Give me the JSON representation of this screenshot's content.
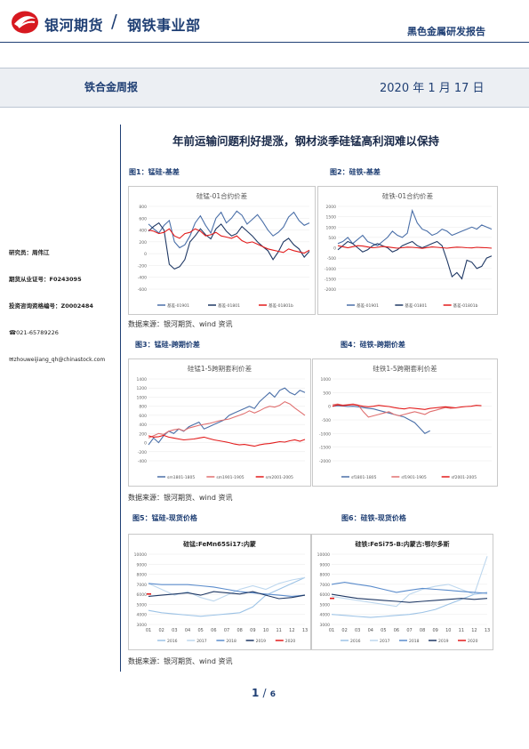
{
  "header": {
    "company": "银河期货",
    "slash": "/",
    "department": "钢铁事业部",
    "report_type": "黑色金属研发报告"
  },
  "band": {
    "report_name": "铁合金周报",
    "date": "2020 年 1 月 17 日"
  },
  "headline": "年前运输问题利好提涨，钢材淡季硅锰高利润难以保持",
  "sidebar": {
    "researcher_label": "研究员：",
    "researcher_name": "周伟江",
    "license_label": "期货从业证号：",
    "license_no": "F0243095",
    "consult_label": "投资咨询资格编号：",
    "consult_no": "Z0002484",
    "phone": "021-65789226",
    "email": "zhouweijiang_qh@chinastock.com"
  },
  "figures": [
    {
      "label": "图1：锰硅-基差"
    },
    {
      "label": "图2：硅铁-基差"
    },
    {
      "label": "图3：锰硅-跨期价差"
    },
    {
      "label": "图4：硅铁-跨期价差"
    },
    {
      "label": "图5：锰硅-现货价格"
    },
    {
      "label": "图6：硅铁-现货价格"
    }
  ],
  "source_notes": [
    "数据来源：银河期货、wind 资讯",
    "数据来源：银河期货、wind 资讯",
    "数据来源：银河期货、wind 资讯"
  ],
  "footer": {
    "page": "1",
    "total": "6",
    "slash": "/"
  },
  "colors": {
    "brand_red": "#d71920",
    "brand_blue": "#1f3f74",
    "s_blue": "#4a6fa8",
    "s_navy": "#1f3864",
    "s_red": "#e21b1b",
    "s_light": "#9dc3e6"
  },
  "chart_data": [
    {
      "type": "line",
      "title": "硅锰-01合约价差",
      "ylim": [
        -600,
        800
      ],
      "yticks": [
        "800",
        "600",
        "400",
        "200",
        "0",
        "-200",
        "-400",
        "-600"
      ],
      "series": [
        {
          "name": "基差-01901",
          "values": [
            500,
            420,
            350,
            480,
            560,
            200,
            100,
            150,
            300,
            520,
            640,
            480,
            350,
            600,
            700,
            520,
            600,
            720,
            650,
            500,
            580,
            660,
            540,
            400,
            300,
            360,
            450,
            620,
            700,
            560,
            480,
            520
          ]
        },
        {
          "name": "基差-01801",
          "values": [
            380,
            460,
            520,
            400,
            -180,
            -260,
            -220,
            -100,
            200,
            300,
            420,
            320,
            250,
            420,
            500,
            380,
            300,
            340,
            460,
            380,
            300,
            200,
            120,
            50,
            -100,
            30,
            200,
            260,
            150,
            80,
            -60,
            40
          ]
        },
        {
          "name": "基差-01801b",
          "values": [
            400,
            380,
            340,
            360,
            420,
            300,
            260,
            340,
            360,
            420,
            380,
            300,
            320,
            360,
            300,
            280,
            260,
            300,
            220,
            180,
            200,
            160,
            120,
            80,
            60,
            40,
            20,
            80,
            50,
            30,
            10,
            60
          ]
        }
      ]
    },
    {
      "type": "line",
      "title": "硅铁-01合约价差",
      "ylim": [
        -2000,
        2000
      ],
      "yticks": [
        "2000",
        "1500",
        "1000",
        "500",
        "0",
        "-500",
        "-1000",
        "-1500",
        "-2000"
      ],
      "series": [
        {
          "name": "基差-01901",
          "values": [
            200,
            300,
            500,
            200,
            400,
            600,
            300,
            200,
            100,
            300,
            500,
            800,
            600,
            500,
            700,
            1800,
            1200,
            900,
            800,
            600,
            700,
            900,
            800,
            600,
            700,
            800,
            900,
            1000,
            900,
            1100,
            1000,
            900
          ]
        },
        {
          "name": "基差-01801",
          "values": [
            -100,
            100,
            300,
            200,
            0,
            -200,
            -100,
            100,
            200,
            100,
            0,
            -200,
            -100,
            100,
            200,
            300,
            100,
            0,
            100,
            200,
            300,
            100,
            -600,
            -1400,
            -1200,
            -1500,
            -600,
            -700,
            -1000,
            -900,
            -500,
            -400
          ]
        },
        {
          "name": "基差-01801b",
          "values": [
            100,
            50,
            0,
            50,
            100,
            80,
            40,
            0,
            20,
            60,
            40,
            10,
            -20,
            0,
            30,
            20,
            0,
            -30,
            10,
            40,
            20,
            0,
            -20,
            10,
            30,
            20,
            0,
            -10,
            20,
            10,
            0,
            -20
          ]
        }
      ]
    },
    {
      "type": "line",
      "title": "硅锰1-5跨期套利价差",
      "ylim": [
        -400,
        1400
      ],
      "yticks": [
        "1400",
        "1200",
        "1000",
        "800",
        "600",
        "400",
        "200",
        "0",
        "-200",
        "-400"
      ],
      "series": [
        {
          "name": "sm1801-1805",
          "values": [
            -50,
            100,
            0,
            150,
            250,
            200,
            300,
            250,
            350,
            400,
            450,
            300,
            350,
            400,
            450,
            500,
            600,
            650,
            700,
            750,
            800,
            750,
            900,
            1000,
            1100,
            1000,
            1150,
            1200,
            1100,
            1050,
            1150,
            1100
          ]
        },
        {
          "name": "sm1901-1905",
          "values": [
            100,
            150,
            200,
            180,
            250,
            280,
            300,
            260,
            320,
            350,
            380,
            400,
            420,
            450,
            480,
            500,
            520,
            560,
            600,
            640,
            700,
            650,
            700,
            760,
            800,
            780,
            820,
            900,
            850,
            760,
            680,
            600
          ]
        },
        {
          "name": "sm2001-2005",
          "values": [
            150,
            120,
            130,
            160,
            120,
            100,
            80,
            60,
            70,
            80,
            100,
            120,
            90,
            60,
            40,
            20,
            0,
            -30,
            -50,
            -40,
            -60,
            -80,
            -50,
            -30,
            -20,
            0,
            20,
            10,
            40,
            60,
            30,
            70
          ]
        }
      ]
    },
    {
      "type": "line",
      "title": "硅铁1-5跨期套利价差",
      "ylim": [
        -2000,
        1000
      ],
      "yticks": [
        "1000",
        "500",
        "0",
        "-500",
        "-1000",
        "-1500",
        "-2000"
      ],
      "series": [
        {
          "name": "sf1801-1805",
          "values": [
            0,
            20,
            10,
            -10,
            0,
            -20,
            -50,
            -80,
            -100,
            -150,
            -200,
            -250,
            -300,
            -350,
            -400,
            -500,
            -600,
            -800,
            -1000,
            -900
          ]
        },
        {
          "name": "sf1901-1905",
          "values": [
            50,
            80,
            40,
            60,
            80,
            40,
            -200,
            -400,
            -350,
            -300,
            -250,
            -200,
            -300,
            -350,
            -300,
            -250,
            -200,
            -250,
            -300,
            -200,
            -150,
            -100,
            -50,
            -80,
            -60
          ]
        },
        {
          "name": "sf2001-2005",
          "values": [
            0,
            50,
            20,
            40,
            60,
            30,
            0,
            -20,
            0,
            30,
            10,
            -10,
            -50,
            -80,
            -100,
            -60,
            -80,
            -100,
            -120,
            -80,
            -60,
            -40,
            -20,
            -40,
            -60,
            -30,
            -10,
            0,
            30,
            20
          ]
        }
      ]
    },
    {
      "type": "line",
      "title": "硅锰:FeMn65Si17:内蒙",
      "ylim": [
        4000,
        10000
      ],
      "yticks": [
        "10000",
        "9000",
        "8000",
        "7000",
        "6000",
        "5000",
        "4000",
        "3000"
      ],
      "xticks": [
        "01",
        "02",
        "03",
        "04",
        "05",
        "06",
        "07",
        "08",
        "09",
        "10",
        "11",
        "12",
        "13"
      ],
      "series": [
        {
          "name": "2016",
          "values": [
            5200,
            5000,
            4900,
            4800,
            4700,
            4800,
            4900,
            5000,
            5500,
            6500,
            7000,
            7500,
            8000
          ]
        },
        {
          "name": "2017",
          "values": [
            7500,
            7000,
            6500,
            6800,
            6300,
            6000,
            6500,
            7000,
            7300,
            7000,
            7500,
            7800,
            8000
          ]
        },
        {
          "name": "2018",
          "values": [
            7500,
            7400,
            7400,
            7400,
            7300,
            7200,
            7000,
            6800,
            6700,
            6600,
            6500,
            6400,
            6500
          ]
        },
        {
          "name": "2019",
          "values": [
            6400,
            6500,
            6600,
            6700,
            6500,
            6800,
            6700,
            6600,
            6800,
            6500,
            6200,
            6300,
            6500
          ]
        },
        {
          "name": "2020",
          "values": [
            6600
          ]
        }
      ]
    },
    {
      "type": "line",
      "title": "硅铁:FeSi75-B:内蒙古:鄂尔多斯",
      "ylim": [
        3000,
        10000
      ],
      "yticks": [
        "10000",
        "9000",
        "8000",
        "7000",
        "6000",
        "5000",
        "4000",
        "3000"
      ],
      "xticks": [
        "01",
        "02",
        "03",
        "04",
        "05",
        "06",
        "07",
        "08",
        "09",
        "10",
        "11",
        "12",
        "13"
      ],
      "series": [
        {
          "name": "2016",
          "values": [
            4000,
            3900,
            3800,
            3700,
            3800,
            3900,
            4000,
            4200,
            4500,
            5000,
            5500,
            6000,
            6200
          ]
        },
        {
          "name": "2017",
          "values": [
            5800,
            5600,
            5400,
            5200,
            5000,
            4800,
            6000,
            6500,
            6800,
            7000,
            6500,
            6000,
            9800
          ]
        },
        {
          "name": "2018",
          "values": [
            7000,
            7200,
            7000,
            6800,
            6500,
            6200,
            6400,
            6600,
            6500,
            6400,
            6300,
            6200,
            6100
          ]
        },
        {
          "name": "2019",
          "values": [
            6000,
            5800,
            5600,
            5500,
            5400,
            5300,
            5200,
            5300,
            5400,
            5500,
            5600,
            5500,
            5600
          ]
        },
        {
          "name": "2020",
          "values": [
            5600
          ]
        }
      ]
    }
  ]
}
